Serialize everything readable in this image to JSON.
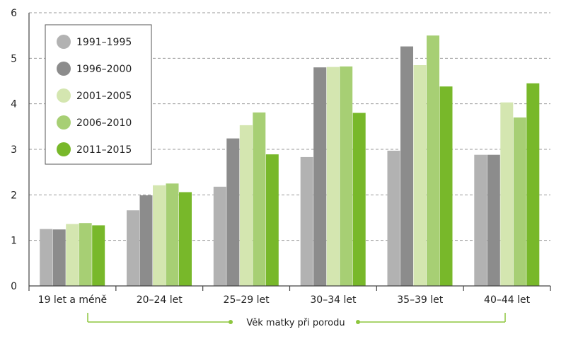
{
  "chart_data": {
    "type": "bar",
    "xlabel": "Věk matky při porodu",
    "ylabel": "",
    "ylim": [
      0,
      6
    ],
    "yticks": [
      "0",
      "1",
      "2",
      "3",
      "4",
      "5",
      "6"
    ],
    "grid": "horizontal dashed",
    "legend_position": "top-left",
    "categories": [
      "19 let a méně",
      "20–24 let",
      "25–29 let",
      "30–34 let",
      "35–39 let",
      "40–44 let"
    ],
    "series": [
      {
        "name": "1991–1995",
        "color": "#b2b2b2",
        "values": [
          1.25,
          1.66,
          2.18,
          2.83,
          2.97,
          2.88
        ]
      },
      {
        "name": "1996–2000",
        "color": "#8c8c8c",
        "values": [
          1.24,
          1.99,
          3.24,
          4.8,
          5.26,
          2.88
        ]
      },
      {
        "name": "2001–2005",
        "color": "#d4e6b0",
        "values": [
          1.36,
          2.21,
          3.53,
          4.81,
          4.85,
          4.03
        ]
      },
      {
        "name": "2006–2010",
        "color": "#a7cf74",
        "values": [
          1.38,
          2.25,
          3.81,
          4.82,
          5.5,
          3.7
        ]
      },
      {
        "name": "2011–2015",
        "color": "#78b82a",
        "values": [
          1.33,
          2.06,
          2.89,
          3.8,
          4.38,
          4.45
        ]
      }
    ]
  }
}
